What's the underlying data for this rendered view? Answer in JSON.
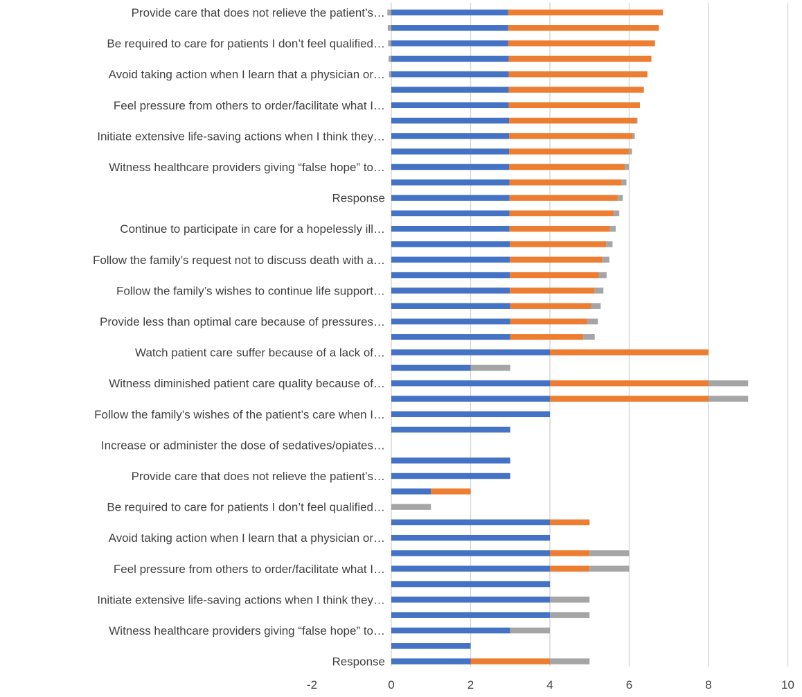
{
  "chart_data": {
    "type": "bar",
    "orientation": "horizontal",
    "stacked": true,
    "title": "",
    "xlabel": "",
    "ylabel": "",
    "xlim": [
      -2,
      10
    ],
    "x_ticks": [
      -2,
      0,
      2,
      4,
      6,
      8,
      10
    ],
    "grid": true,
    "legend": "none",
    "categories": [
      "Provide care that does not relieve the patient’s…",
      "",
      "Be required to care for patients I don’t feel qualified…",
      "",
      "Avoid taking action when I learn that a physician or…",
      "",
      "Feel pressure from others to order/facilitate what I…",
      "",
      "Initiate extensive life-saving actions when I think they…",
      "",
      "Witness healthcare providers giving “false hope” to…",
      "",
      "Response",
      "",
      "Continue to participate in care for a hopelessly ill…",
      "",
      "Follow the family’s request not to discuss death with a…",
      "",
      "Follow the family’s wishes to continue life support…",
      "",
      "Provide less than optimal care because of pressures…",
      "",
      "Watch patient care suffer because of a lack of…",
      "",
      "Witness diminished patient care quality because of…",
      "",
      "Follow the family’s wishes of the patient’s care when I…",
      "",
      "Increase or administer the dose of sedatives/opiates…",
      "",
      "Provide care that does not relieve the patient’s…",
      "",
      "Be required to care for patients I don’t feel qualified…",
      "",
      "Avoid taking action when I learn that a physician or…",
      "",
      "Feel pressure from others to order/facilitate what I…",
      "",
      "Initiate extensive life-saving actions when I think they…",
      "",
      "Witness healthcare providers giving “false hope” to…",
      "",
      "Response"
    ],
    "series": [
      {
        "color": "#4472C4",
        "values": [
          2.95,
          2.95,
          2.95,
          2.96,
          2.96,
          2.96,
          2.96,
          2.97,
          2.97,
          2.97,
          2.97,
          2.98,
          2.98,
          2.98,
          2.98,
          2.99,
          2.99,
          2.99,
          2.99,
          3,
          3,
          3,
          4,
          2,
          4,
          4,
          4,
          3,
          0,
          3,
          3,
          1,
          0,
          4,
          4,
          4,
          4,
          4,
          4,
          4,
          3,
          2,
          2
        ]
      },
      {
        "color": "#ED7D31",
        "values": [
          3.9,
          3.8,
          3.7,
          3.6,
          3.5,
          3.41,
          3.31,
          3.21,
          3.12,
          3.02,
          2.92,
          2.83,
          2.73,
          2.63,
          2.53,
          2.43,
          2.33,
          2.24,
          2.14,
          2.04,
          1.94,
          1.84,
          4,
          0,
          4,
          4,
          0,
          0,
          0,
          0,
          0,
          1,
          0,
          1,
          0,
          1,
          1,
          0,
          0,
          0,
          0,
          0,
          2
        ]
      },
      {
        "color": "#A5A5A5",
        "values": [
          0,
          0,
          0,
          0,
          0,
          0,
          0,
          0.03,
          0.05,
          0.08,
          0.1,
          0.12,
          0.13,
          0.14,
          0.15,
          0.16,
          0.18,
          0.2,
          0.22,
          0.24,
          0.27,
          0.29,
          0,
          1,
          1,
          1,
          0,
          0,
          0,
          0,
          0,
          0,
          1,
          0,
          0,
          1,
          1,
          0,
          1,
          1,
          1,
          0,
          1
        ]
      },
      {
        "color": "#A5A5A5",
        "negative": true,
        "values": [
          0.1,
          0.09,
          0.08,
          0.07,
          0.06,
          0,
          0,
          0,
          0,
          0,
          0,
          0,
          0,
          0,
          0,
          0,
          0,
          0,
          0,
          0,
          0,
          0,
          0,
          0,
          0,
          0,
          0,
          0,
          0,
          0,
          0,
          0,
          0,
          0,
          0,
          0,
          0,
          0,
          0,
          0,
          0,
          0,
          0
        ]
      }
    ]
  }
}
